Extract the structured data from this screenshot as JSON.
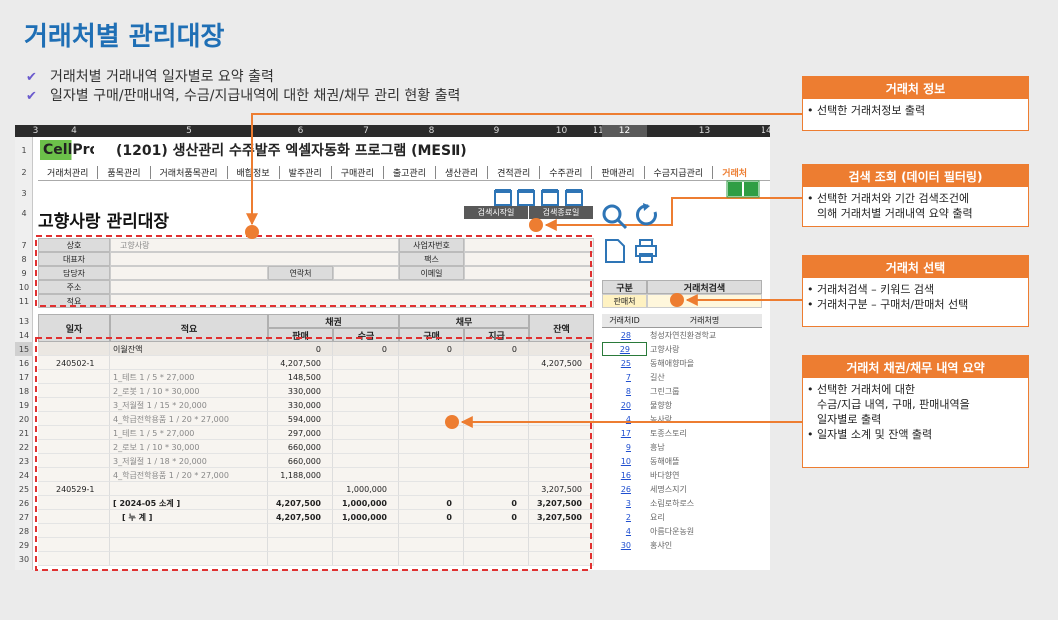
{
  "title": "거래처별 관리대장",
  "bullets": [
    "거래처별 거래내역 일자별로 요약 출력",
    "일자별 구매/판매내역, 수금/지급내역에 대한 채권/채무 관리 현황 출력"
  ],
  "sheet": {
    "col_headers": [
      "3",
      "4",
      "5",
      "6",
      "7",
      "8",
      "9",
      "10",
      "11",
      "12",
      "13",
      "14"
    ],
    "row_numbers": [
      "1",
      "2",
      "3",
      "4",
      "7",
      "8",
      "9",
      "10",
      "11",
      "13",
      "14",
      "15",
      "16",
      "17",
      "18",
      "19",
      "20",
      "21",
      "22",
      "23",
      "24",
      "25",
      "26",
      "27",
      "28",
      "29",
      "30"
    ],
    "logo": "CellPro",
    "app_title": "(1201) 생산관리 수주발주 엑셀자동화 프로그램 (MESⅡ)",
    "menu": [
      "거래처관리",
      "품목관리",
      "거래처품목관리",
      "배합정보",
      "발주관리",
      "구매관리",
      "출고관리",
      "생산관리",
      "견적관리",
      "수주관리",
      "판매관리",
      "수금지급관리",
      "거래처"
    ],
    "ledger_title": "고향사랑 관리대장",
    "date_buttons": [
      "검색시작일",
      "검색종료일"
    ],
    "info": {
      "left_labels": [
        "상호",
        "대표자",
        "담당자",
        "주소",
        "적요"
      ],
      "company": "고향사랑",
      "contact_label": "연락처",
      "right_labels": [
        "사업자번호",
        "팩스",
        "이메일"
      ]
    },
    "table": {
      "headers": {
        "date": "일자",
        "memo": "적요",
        "receivable": "채권",
        "payable": "채무",
        "balance": "잔액"
      },
      "sub_headers": [
        "판매",
        "수금",
        "구매",
        "지급"
      ],
      "rows": [
        [
          null,
          "이월잔액",
          "0",
          "0",
          "0",
          "0",
          null
        ],
        [
          "240502-1",
          null,
          "4,207,500",
          null,
          null,
          null,
          "4,207,500"
        ],
        [
          null,
          "1_테트 1 / 5 * 27,000",
          "148,500",
          null,
          null,
          null,
          null
        ],
        [
          null,
          "2_로봇 1 / 10 * 30,000",
          "330,000",
          null,
          null,
          null,
          null
        ],
        [
          null,
          "3_저월절 1 / 15 * 20,000",
          "330,000",
          null,
          null,
          null,
          null
        ],
        [
          null,
          "4_학급전학용품 1 / 20 * 27,000",
          "594,000",
          null,
          null,
          null,
          null
        ],
        [
          null,
          "1_테트 1 / 5 * 27,000",
          "297,000",
          null,
          null,
          null,
          null
        ],
        [
          null,
          "2_로보 1 / 10 * 30,000",
          "660,000",
          null,
          null,
          null,
          null
        ],
        [
          null,
          "3_저월절 1 / 18 * 20,000",
          "660,000",
          null,
          null,
          null,
          null
        ],
        [
          null,
          "4_학급전학용품 1 / 20 * 27,000",
          "1,188,000",
          null,
          null,
          null,
          null
        ],
        [
          "240529-1",
          null,
          null,
          "1,000,000",
          null,
          null,
          "3,207,500"
        ],
        [
          null,
          "[ 2024-05 소계 ]",
          "4,207,500",
          "1,000,000",
          "0",
          "0",
          "3,207,500"
        ],
        [
          null,
          "[ 누   계 ]",
          "4,207,500",
          "1,000,000",
          "0",
          "0",
          "3,207,500"
        ]
      ]
    },
    "search": {
      "type_header": "구분",
      "field_header": "거래처검색",
      "type_value": "판매처",
      "list_headers": [
        "거래처ID",
        "거래처명"
      ],
      "list": [
        [
          "28",
          "청성자연친환경학교"
        ],
        [
          "29",
          "고향사랑"
        ],
        [
          "25",
          "동해애향마을"
        ],
        [
          "7",
          "길산"
        ],
        [
          "8",
          "그린그룹"
        ],
        [
          "20",
          "물향항"
        ],
        [
          "4",
          "농사랑"
        ],
        [
          "17",
          "토종스토리"
        ],
        [
          "9",
          "흥남"
        ],
        [
          "10",
          "동해애뜰"
        ],
        [
          "16",
          "바다향연"
        ],
        [
          "26",
          "세명스지기"
        ],
        [
          "3",
          "소림로하로스"
        ],
        [
          "2",
          "요리"
        ],
        [
          "4",
          "아름다운농원"
        ],
        [
          "30",
          "홍샤인"
        ]
      ]
    }
  },
  "callouts": [
    {
      "title": "거래처 정보",
      "lines": [
        "• 선택한 거래처정보 출력"
      ]
    },
    {
      "title": "검색 조회 (데이터 필터링)",
      "lines": [
        "• 선택한 거래처와 기간 검색조건에",
        "의해 거래처별 거래내역 요약 출력"
      ]
    },
    {
      "title": "거래처 선택",
      "lines": [
        "• 거래처검색 – 키워드 검색",
        "• 거래처구분 – 구매처/판매처 선택"
      ]
    },
    {
      "title": "거래처 채권/채무 내역 요약",
      "lines": [
        "• 선택한 거래처에 대한",
        "수금/지급 내역, 구매, 판매내역을",
        "일자별로 출력",
        "• 일자별 소계 및 잔액 출력"
      ]
    }
  ]
}
